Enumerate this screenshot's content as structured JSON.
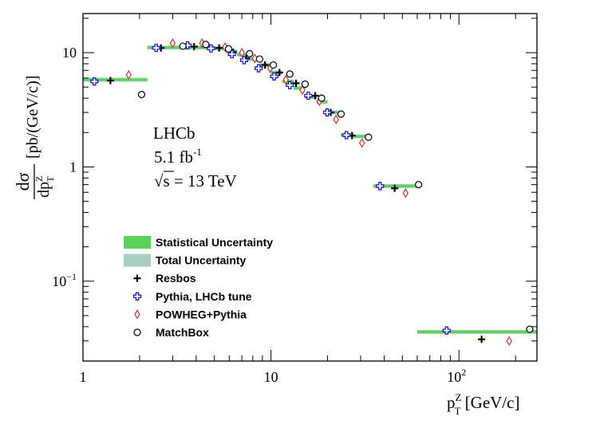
{
  "chart_data": {
    "type": "scatter",
    "x_scale": "log",
    "y_scale": "log",
    "xlim": [
      1,
      260
    ],
    "ylim": [
      0.02,
      22
    ],
    "x_ticks": [
      {
        "value": 1,
        "label": "1"
      },
      {
        "value": 10,
        "label": "10"
      },
      {
        "value": 100,
        "label": "10",
        "sup": "2"
      }
    ],
    "y_ticks": [
      {
        "value": 0.1,
        "label": "10",
        "sup": "−1"
      },
      {
        "value": 1,
        "label": "1"
      },
      {
        "value": 10,
        "label": "10"
      }
    ],
    "xlabel": {
      "main": "p",
      "sup": "Z",
      "sub": "T",
      "unit": " [GeV/c]"
    },
    "ylabel": {
      "frac_num": "dσ",
      "frac_den_main": "dp",
      "frac_den_sup": "Z",
      "frac_den_sub": "T",
      "unit": "[pb/(GeV/c)]"
    },
    "annotation": {
      "experiment": "LHCb",
      "lumi_main": "5.1 fb",
      "lumi_sup": "-1",
      "energy_sqrt": "√s",
      "energy_rest": " = 13 TeV"
    },
    "legend": [
      {
        "label": "Statistical Uncertainty",
        "style": "box",
        "color": "#5bd35b"
      },
      {
        "label": "Total Uncertainty",
        "style": "box",
        "color": "#a8cec4"
      },
      {
        "label": "Resbos",
        "style": "plus",
        "color": "#000000"
      },
      {
        "label": "Pythia, LHCb tune",
        "style": "openplus",
        "color": "#1a1ad6"
      },
      {
        "label": "POWHEG+Pythia",
        "style": "diamond",
        "color": "#e03020"
      },
      {
        "label": "MatchBox",
        "style": "circle",
        "color": "#000000"
      }
    ],
    "data_bins": [
      {
        "xlo": 1.0,
        "xhi": 2.2,
        "y": 5.8
      },
      {
        "xlo": 2.2,
        "xhi": 5.0,
        "y": 11.1
      },
      {
        "xlo": 5.0,
        "xhi": 5.7,
        "y": 10.9
      },
      {
        "xlo": 5.7,
        "xhi": 6.6,
        "y": 10.3
      },
      {
        "xlo": 6.6,
        "xhi": 7.6,
        "y": 9.6
      },
      {
        "xlo": 7.6,
        "xhi": 8.7,
        "y": 8.8
      },
      {
        "xlo": 8.7,
        "xhi": 10.0,
        "y": 7.8
      },
      {
        "xlo": 10.0,
        "xhi": 11.5,
        "y": 6.7
      },
      {
        "xlo": 11.5,
        "xhi": 13.2,
        "y": 5.6
      },
      {
        "xlo": 13.2,
        "xhi": 15.2,
        "y": 4.9
      },
      {
        "xlo": 15.2,
        "xhi": 17.5,
        "y": 4.1
      },
      {
        "xlo": 17.5,
        "xhi": 20.0,
        "y": 3.7
      },
      {
        "xlo": 20.0,
        "xhi": 23.5,
        "y": 3.0
      },
      {
        "xlo": 23.5,
        "xhi": 27.5,
        "y": 1.9
      },
      {
        "xlo": 27.5,
        "xhi": 32.0,
        "y": 1.85
      },
      {
        "xlo": 35.0,
        "xhi": 60.0,
        "y": 0.68
      },
      {
        "xlo": 60.0,
        "xhi": 260.0,
        "y": 0.036
      }
    ],
    "series": [
      {
        "name": "Resbos",
        "style": "plus",
        "color": "#000000",
        "x": [
          1.4,
          2.6,
          3.9,
          5.3,
          6.3,
          7.4,
          9.3,
          11.1,
          13.6,
          17.2,
          20.8,
          27.0,
          45.5,
          132.0
        ],
        "y": [
          5.7,
          11.0,
          11.3,
          11.0,
          10.1,
          8.9,
          7.8,
          6.7,
          5.4,
          4.2,
          3.0,
          1.88,
          0.65,
          0.031
        ]
      },
      {
        "name": "Pythia, LHCb tune",
        "style": "openplus",
        "color": "#1a1ad6",
        "x": [
          1.15,
          2.45,
          3.6,
          4.8,
          6.2,
          7.2,
          8.6,
          10.4,
          12.6,
          15.8,
          19.9,
          25.2,
          38.0,
          86.0
        ],
        "y": [
          5.6,
          11.0,
          11.6,
          10.9,
          9.7,
          8.6,
          7.3,
          6.2,
          5.2,
          4.2,
          3.0,
          1.9,
          0.68,
          0.037
        ]
      },
      {
        "name": "POWHEG+Pythia",
        "style": "diamond",
        "color": "#e03020",
        "x": [
          1.75,
          3.0,
          4.3,
          5.7,
          7.0,
          8.2,
          9.9,
          12.0,
          14.7,
          18.1,
          22.2,
          30.5,
          52.0,
          185.0
        ],
        "y": [
          6.4,
          12.1,
          12.1,
          11.2,
          10.0,
          8.9,
          7.3,
          5.8,
          4.7,
          3.75,
          2.6,
          1.62,
          0.59,
          0.03
        ]
      },
      {
        "name": "MatchBox",
        "style": "circle",
        "color": "#000000",
        "x": [
          2.05,
          3.4,
          4.5,
          5.95,
          7.7,
          8.7,
          10.3,
          12.6,
          15.2,
          18.6,
          23.6,
          33.0,
          61.0,
          238.0
        ],
        "y": [
          4.3,
          11.4,
          11.8,
          10.8,
          9.8,
          8.8,
          7.8,
          6.5,
          5.3,
          4.0,
          2.9,
          1.82,
          0.7,
          0.038
        ]
      }
    ]
  }
}
